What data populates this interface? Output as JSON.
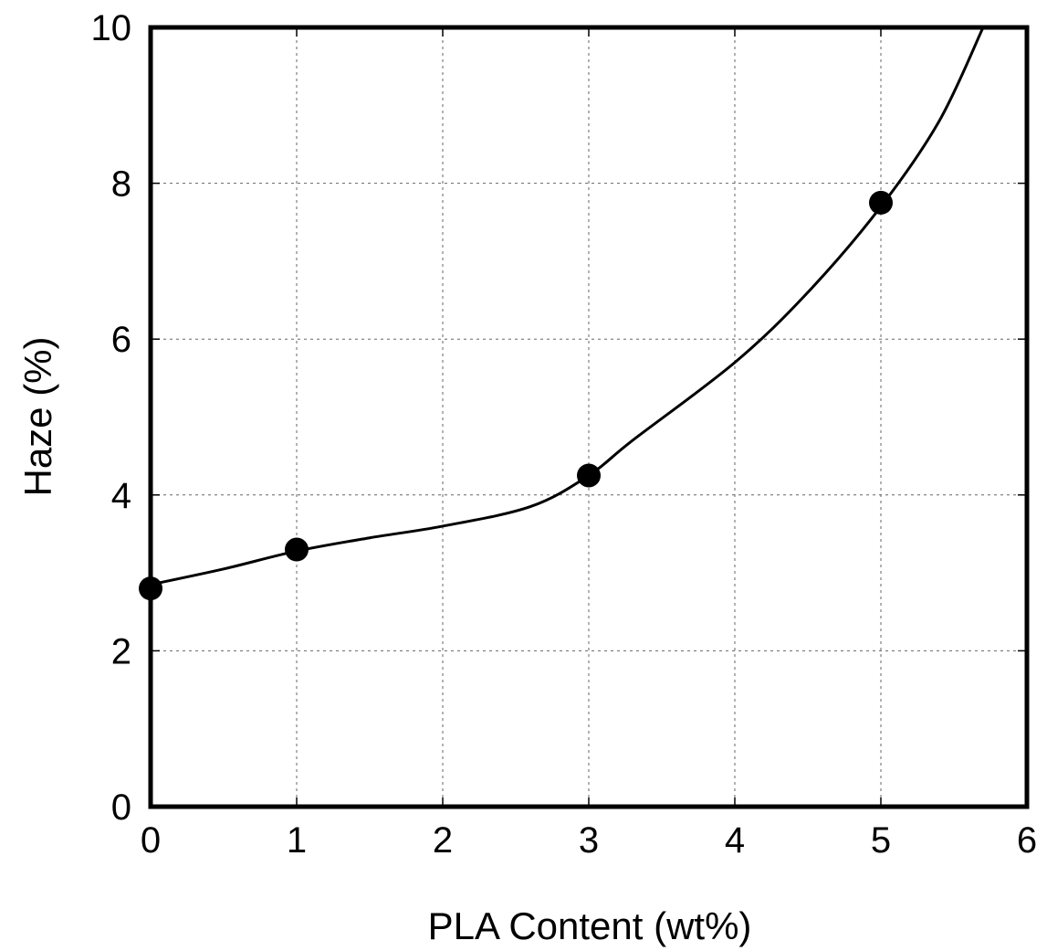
{
  "chart_data": {
    "type": "scatter",
    "title": "",
    "xlabel": "PLA Content (wt%)",
    "ylabel": "Haze (%)",
    "xlim": [
      0,
      6
    ],
    "ylim": [
      0,
      10
    ],
    "x_ticks": [
      "0",
      "1",
      "2",
      "3",
      "4",
      "5",
      "6"
    ],
    "y_ticks": [
      "0",
      "2",
      "4",
      "6",
      "8",
      "10"
    ],
    "grid": true,
    "series": [
      {
        "x": [
          0,
          1,
          3,
          5
        ],
        "y": [
          2.8,
          3.3,
          4.25,
          7.75
        ],
        "marker": "filled-circle",
        "color": "#000000"
      }
    ],
    "trend_line": {
      "x": [
        0,
        0.5,
        1,
        1.5,
        2,
        2.6,
        3,
        3.3,
        4,
        4.5,
        5,
        5.4,
        5.7
      ],
      "y": [
        2.85,
        3.05,
        3.28,
        3.45,
        3.6,
        3.85,
        4.25,
        4.7,
        5.7,
        6.6,
        7.7,
        8.8,
        10.0
      ]
    }
  }
}
